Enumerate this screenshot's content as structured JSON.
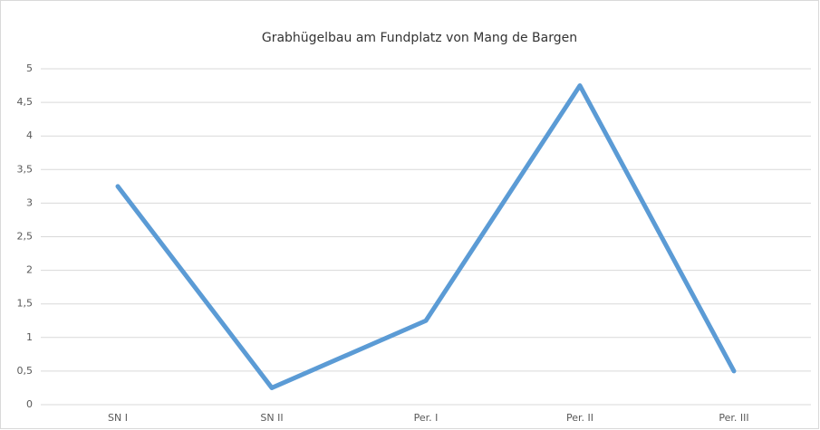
{
  "chart_data": {
    "type": "line",
    "title": "Grabhügelbau am Fundplatz von Mang de Bargen",
    "categories": [
      "SN I",
      "SN II",
      "Per. I",
      "Per. II",
      "Per. III"
    ],
    "values": [
      3.25,
      0.25,
      1.25,
      4.75,
      0.5
    ],
    "color": "#5b9bd5",
    "ylim": [
      0,
      5
    ],
    "yticks": [
      0,
      {
        "value": 0.5,
        "label": "0,5"
      },
      1,
      {
        "value": 1.5,
        "label": "1,5"
      },
      2,
      {
        "value": 2.5,
        "label": "2,5"
      },
      3,
      {
        "value": 3.5,
        "label": "3,5"
      },
      4,
      {
        "value": 4.5,
        "label": "4,5"
      },
      5
    ],
    "grid": true
  }
}
